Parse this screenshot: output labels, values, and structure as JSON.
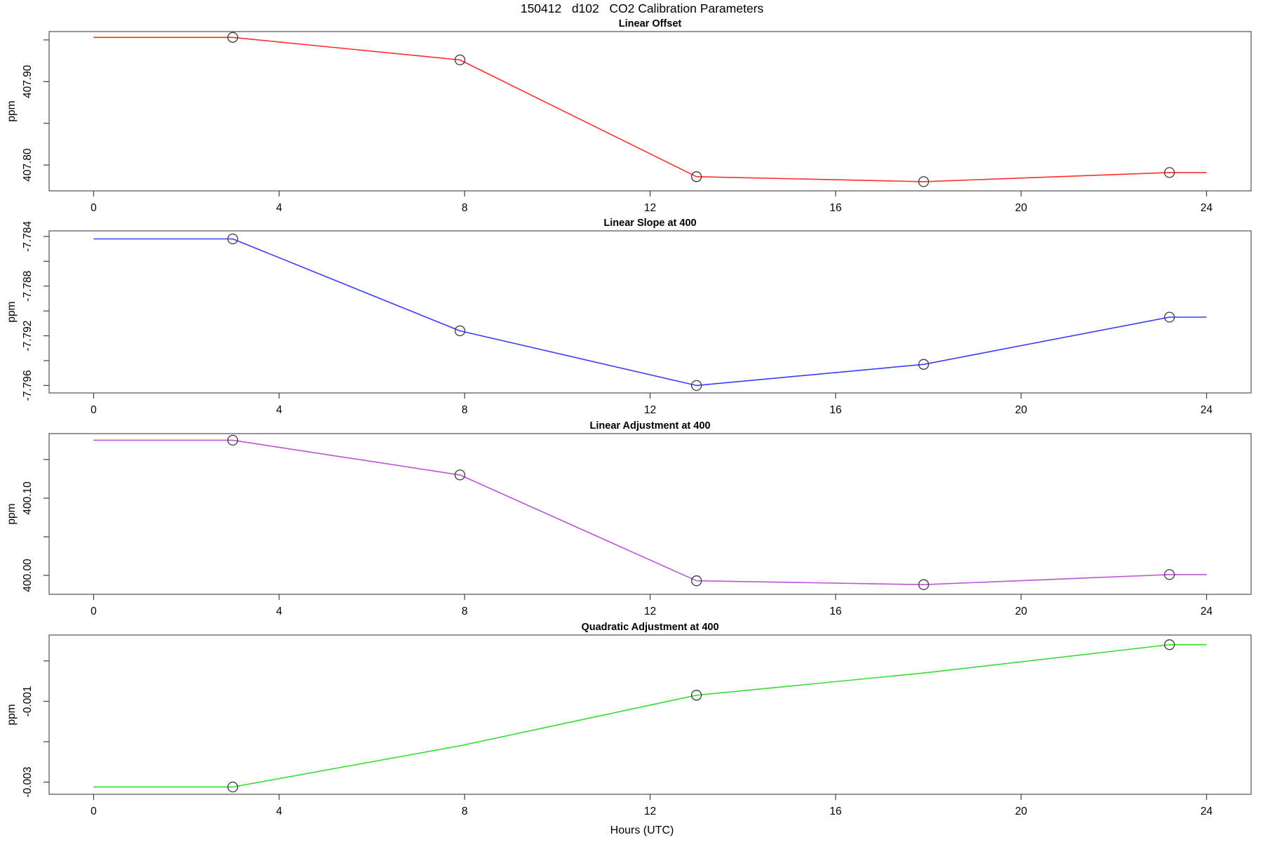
{
  "header": {
    "title": "150412   d102   CO2 Calibration Parameters"
  },
  "chart_data": {
    "type": "line",
    "xlabel": "Hours (UTC)",
    "ylabel": "ppm",
    "x_unit": "hours UTC",
    "xlim": [
      -0.96,
      24.96
    ],
    "x_ticks": [
      0,
      4,
      8,
      12,
      16,
      20,
      24
    ],
    "hours": [
      0,
      3,
      7.9,
      13,
      17.9,
      23.2,
      24
    ],
    "marker_style": "open-circle",
    "grid": false,
    "legend": "none",
    "panels": [
      {
        "title": "Linear Offset",
        "color": "#ff2d2d",
        "ylim": [
          407.769,
          407.96
        ],
        "yticks": [
          {
            "v": 407.8,
            "label": "407.80"
          },
          {
            "v": 407.85,
            "label": ""
          },
          {
            "v": 407.9,
            "label": "407.90"
          },
          {
            "v": 407.95,
            "label": ""
          }
        ],
        "values": [
          407.953,
          407.953,
          407.926,
          407.786,
          407.78,
          407.791,
          407.791
        ],
        "marker_indices": [
          1,
          2,
          3,
          4,
          5
        ]
      },
      {
        "title": "Linear Slope at 400",
        "color": "#3b3bff",
        "ylim": [
          -7.7966,
          -7.78355
        ],
        "yticks": [
          {
            "v": -7.784,
            "label": "-7.784"
          },
          {
            "v": -7.786,
            "label": ""
          },
          {
            "v": -7.788,
            "label": "-7.788"
          },
          {
            "v": -7.79,
            "label": ""
          },
          {
            "v": -7.792,
            "label": "-7.792"
          },
          {
            "v": -7.794,
            "label": ""
          },
          {
            "v": -7.796,
            "label": "-7.796"
          }
        ],
        "values": [
          -7.7842,
          -7.7842,
          -7.7916,
          -7.796,
          -7.7943,
          -7.7905,
          -7.7905
        ],
        "marker_indices": [
          1,
          2,
          3,
          4,
          5
        ]
      },
      {
        "title": "Linear Adjustment at 400",
        "color": "#ba55d3",
        "ylim": [
          399.9755,
          400.1835
        ],
        "yticks": [
          {
            "v": 400.0,
            "label": "400.00"
          },
          {
            "v": 400.05,
            "label": ""
          },
          {
            "v": 400.1,
            "label": "400.10"
          },
          {
            "v": 400.15,
            "label": ""
          }
        ],
        "values": [
          400.175,
          400.175,
          400.13,
          399.993,
          399.988,
          400.001,
          400.001
        ],
        "marker_indices": [
          1,
          2,
          3,
          4,
          5
        ]
      },
      {
        "title": "Quadratic Adjustment at 400",
        "color": "#35dc35",
        "ylim": [
          -0.0033,
          0.00064
        ],
        "yticks": [
          {
            "v": 0.0,
            "label": ""
          },
          {
            "v": -0.001,
            "label": "-0.001"
          },
          {
            "v": -0.002,
            "label": ""
          },
          {
            "v": -0.003,
            "label": "-0.003"
          }
        ],
        "values": [
          -0.00312,
          -0.00312,
          -0.0021,
          -0.00085,
          -0.0003,
          0.0004,
          0.0004
        ],
        "marker_indices": [
          1,
          3,
          5
        ]
      }
    ]
  }
}
